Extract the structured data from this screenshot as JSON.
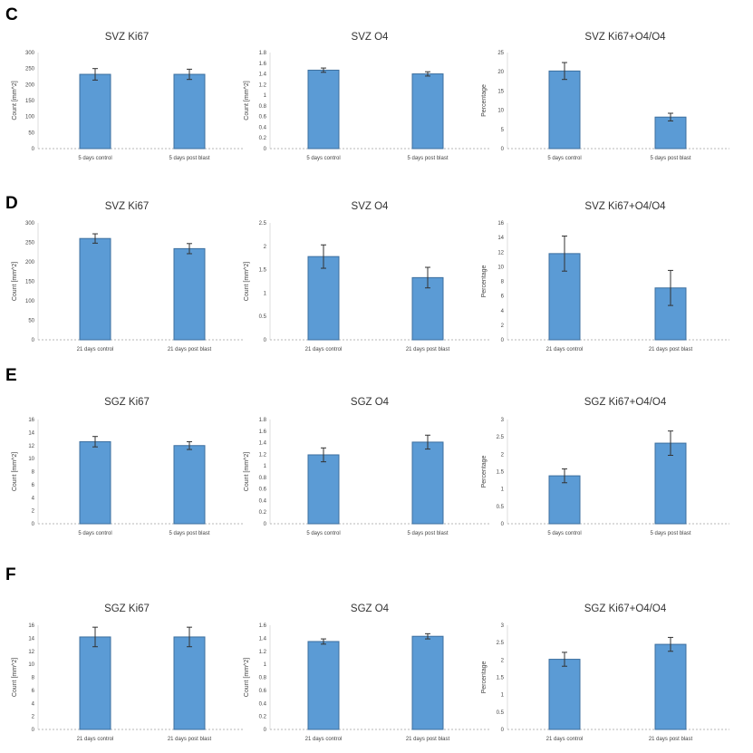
{
  "panels": [
    {
      "letter": "C"
    },
    {
      "letter": "D"
    },
    {
      "letter": "E"
    },
    {
      "letter": "F"
    }
  ],
  "chart_data": [
    {
      "type": "bar",
      "panel": "C",
      "title": "SVZ Ki67",
      "ylabel": "Count [mm^2]",
      "yticks": [
        "0",
        "50",
        "100",
        "150",
        "200",
        "250",
        "300"
      ],
      "ylim": [
        0,
        300
      ],
      "categories": [
        "5 days control",
        "5 days post blast"
      ],
      "values": [
        232,
        232
      ],
      "errors": [
        18,
        16
      ]
    },
    {
      "type": "bar",
      "panel": "C",
      "title": "SVZ O4",
      "ylabel": "Count [mm^2]",
      "yticks": [
        "0",
        "0.2",
        "0.4",
        "0.6",
        "0.8",
        "1",
        "1.2",
        "1.4",
        "1.6",
        "1.8"
      ],
      "ylim": [
        0,
        1.8
      ],
      "categories": [
        "5 days control",
        "5 days post blast"
      ],
      "values": [
        1.47,
        1.4
      ],
      "errors": [
        0.04,
        0.04
      ]
    },
    {
      "type": "bar",
      "panel": "C",
      "title": "SVZ Ki67+O4/O4",
      "ylabel": "Percentage",
      "yticks": [
        "0",
        "5",
        "10",
        "15",
        "20",
        "25"
      ],
      "ylim": [
        0,
        25
      ],
      "categories": [
        "5 days control",
        "5 days post blast"
      ],
      "values": [
        20.2,
        8.2
      ],
      "errors": [
        2.2,
        1.0
      ]
    },
    {
      "type": "bar",
      "panel": "D",
      "title": "SVZ Ki67",
      "ylabel": "Count [mm^2]",
      "yticks": [
        "0",
        "50",
        "100",
        "150",
        "200",
        "250",
        "300"
      ],
      "ylim": [
        0,
        300
      ],
      "categories": [
        "21 days control",
        "21 days post blast"
      ],
      "values": [
        260,
        234
      ],
      "errors": [
        12,
        13
      ]
    },
    {
      "type": "bar",
      "panel": "D",
      "title": "SVZ O4",
      "ylabel": "Count [mm^2]",
      "yticks": [
        "0",
        "0.5",
        "1",
        "1.5",
        "2",
        "2.5"
      ],
      "ylim": [
        0,
        2.5
      ],
      "categories": [
        "21 days control",
        "21 days post blast"
      ],
      "values": [
        1.78,
        1.33
      ],
      "errors": [
        0.25,
        0.22
      ]
    },
    {
      "type": "bar",
      "panel": "D",
      "title": "SVZ Ki67+O4/O4",
      "ylabel": "Percentage",
      "yticks": [
        "0",
        "2",
        "4",
        "6",
        "8",
        "10",
        "12",
        "14",
        "16"
      ],
      "ylim": [
        0,
        16
      ],
      "categories": [
        "21 days control",
        "21 days post blast"
      ],
      "values": [
        11.8,
        7.1
      ],
      "errors": [
        2.4,
        2.4
      ]
    },
    {
      "type": "bar",
      "panel": "E",
      "title": "SGZ Ki67",
      "ylabel": "Count [mm^2]",
      "yticks": [
        "0",
        "2",
        "4",
        "6",
        "8",
        "10",
        "12",
        "14",
        "16"
      ],
      "ylim": [
        0,
        16
      ],
      "categories": [
        "5 days control",
        "5 days post blast"
      ],
      "values": [
        12.6,
        12.0
      ],
      "errors": [
        0.8,
        0.6
      ]
    },
    {
      "type": "bar",
      "panel": "E",
      "title": "SGZ O4",
      "ylabel": "Count [mm^2]",
      "yticks": [
        "0",
        "0.2",
        "0.4",
        "0.6",
        "0.8",
        "1",
        "1.2",
        "1.4",
        "1.6",
        "1.8"
      ],
      "ylim": [
        0,
        1.8
      ],
      "categories": [
        "5 days control",
        "5 days post blast"
      ],
      "values": [
        1.19,
        1.41
      ],
      "errors": [
        0.12,
        0.12
      ]
    },
    {
      "type": "bar",
      "panel": "E",
      "title": "SGZ Ki67+O4/O4",
      "ylabel": "Percentage",
      "yticks": [
        "0",
        "0.5",
        "1",
        "1.5",
        "2",
        "2.5",
        "3"
      ],
      "ylim": [
        0,
        3
      ],
      "categories": [
        "5 days control",
        "5 days post blast"
      ],
      "values": [
        1.38,
        2.32
      ],
      "errors": [
        0.2,
        0.35
      ]
    },
    {
      "type": "bar",
      "panel": "F",
      "title": "SGZ Ki67",
      "ylabel": "Count [mm^2]",
      "yticks": [
        "0",
        "2",
        "4",
        "6",
        "8",
        "10",
        "12",
        "14",
        "16"
      ],
      "ylim": [
        0,
        16
      ],
      "categories": [
        "21 days control",
        "21 days post blast"
      ],
      "values": [
        14.2,
        14.2
      ],
      "errors": [
        1.5,
        1.5
      ]
    },
    {
      "type": "bar",
      "panel": "F",
      "title": "SGZ O4",
      "ylabel": "Count [mm^2]",
      "yticks": [
        "0",
        "0.2",
        "0.4",
        "0.6",
        "0.8",
        "1",
        "1.2",
        "1.4",
        "1.6"
      ],
      "ylim": [
        0,
        1.6
      ],
      "categories": [
        "21 days control",
        "21 days post blast"
      ],
      "values": [
        1.35,
        1.43
      ],
      "errors": [
        0.04,
        0.04
      ]
    },
    {
      "type": "bar",
      "panel": "F",
      "title": "SGZ Ki67+O4/O4",
      "ylabel": "Percentage",
      "yticks": [
        "0",
        "0.5",
        "1",
        "1.5",
        "2",
        "2.5",
        "3"
      ],
      "ylim": [
        0,
        3
      ],
      "categories": [
        "21 days control",
        "21 days post blast"
      ],
      "values": [
        2.02,
        2.45
      ],
      "errors": [
        0.2,
        0.2
      ]
    }
  ]
}
